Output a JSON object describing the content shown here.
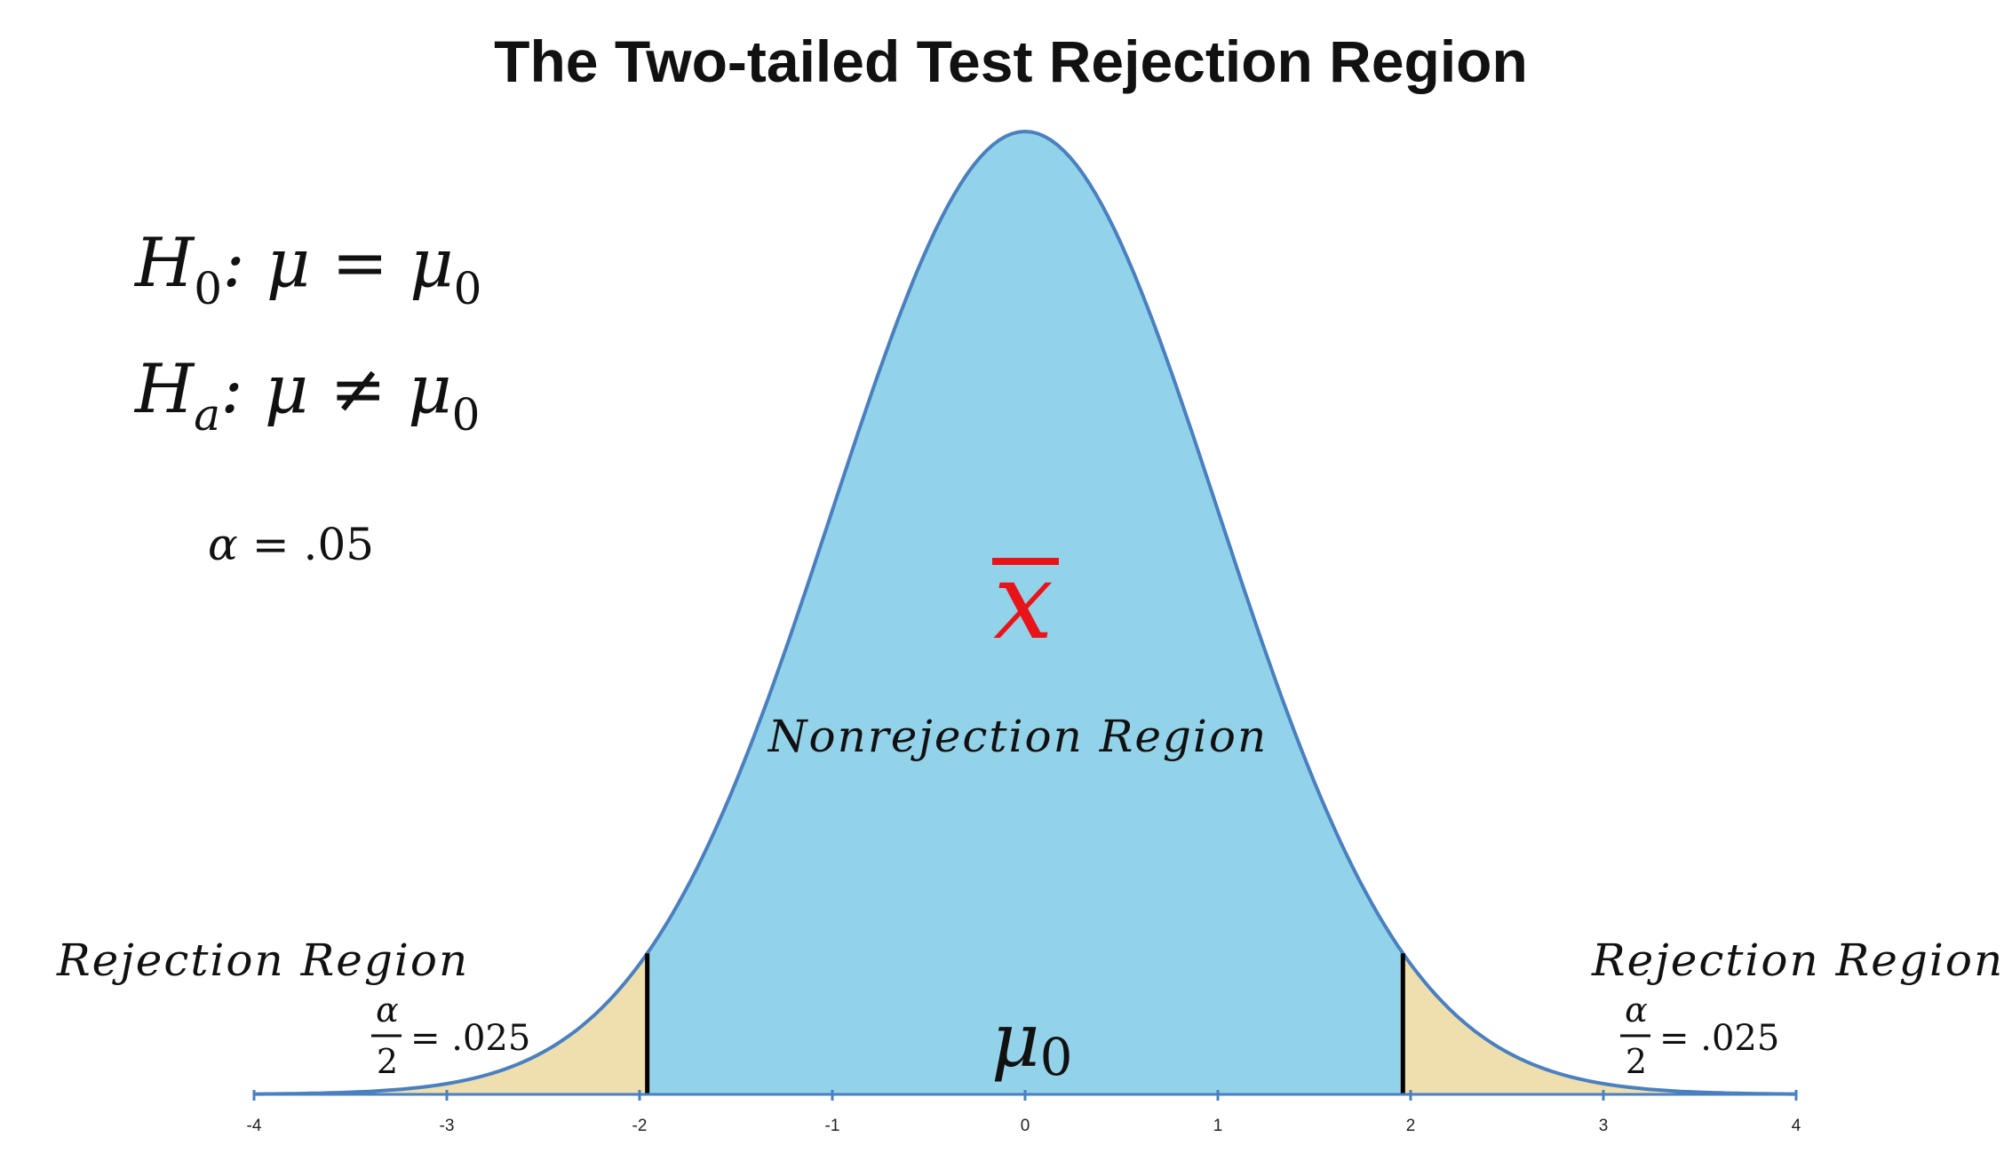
{
  "title": "The Two-tailed Test Rejection Region",
  "hypotheses": {
    "null_symbol": "H",
    "null_subscript": "0",
    "null_rest": ": μ = μ",
    "null_rest_subscript": "0",
    "alt_symbol": "H",
    "alt_subscript": "a",
    "alt_rest": ": μ ≠ μ",
    "alt_rest_subscript": "0"
  },
  "alpha": {
    "symbol": "α",
    "equals": "= .05"
  },
  "sample_mean_symbol": "x",
  "center_labels": {
    "nonrejection": "Nonrejection Region",
    "mu": "μ",
    "mu_subscript": "0"
  },
  "left_tail": {
    "label": "Rejection Region",
    "numerator": "α",
    "denominator": "2",
    "value": "= .025"
  },
  "right_tail": {
    "label": "Rejection Region",
    "numerator": "α",
    "denominator": "2",
    "value": "= .025"
  },
  "colors": {
    "curve_fill": "#93d3ea",
    "curve_stroke": "#4a7fc0",
    "tail_fill": "#efdfae",
    "critical_line": "#000000",
    "sample_mean": "#e8141a"
  },
  "chart_data": {
    "type": "area",
    "distribution": "standard normal",
    "xlim": [
      -4,
      4
    ],
    "x_ticks": [
      -4,
      -3,
      -2,
      -1,
      0,
      1,
      2,
      3,
      4
    ],
    "x_tick_labels": [
      "-4",
      "-3",
      "-2",
      "-1",
      "0",
      "1",
      "2",
      "3",
      "4"
    ],
    "critical_values": [
      -1.96,
      1.96
    ],
    "tail_area_each": 0.025,
    "alpha": 0.05
  }
}
